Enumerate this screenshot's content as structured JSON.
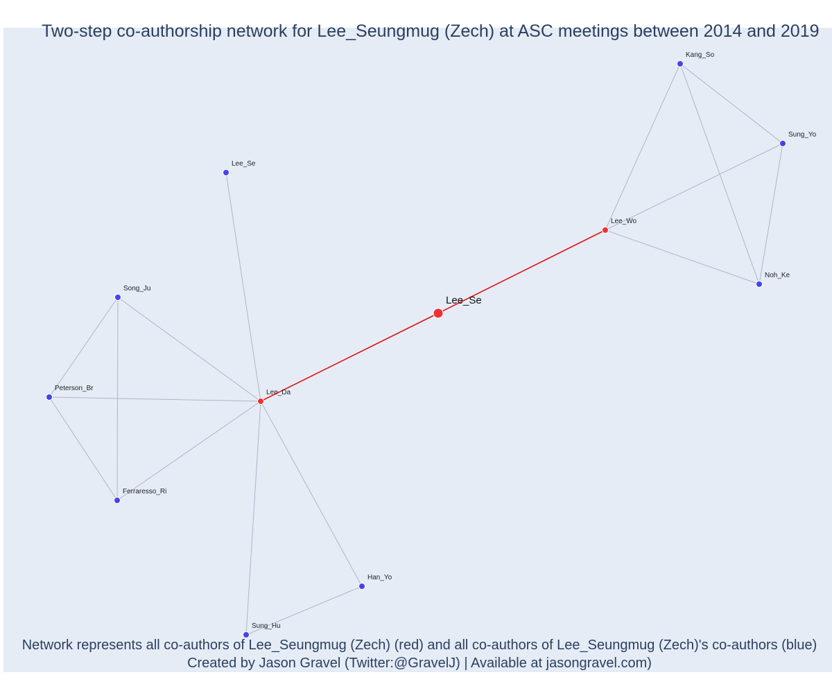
{
  "title": "Two-step co-authorship network for Lee_Seungmug (Zech) at ASC meetings between 2014 and 2019",
  "captions": {
    "line1": "Network represents all co-authors of Lee_Seungmug (Zech) (red) and all co-authors of Lee_Seungmug (Zech)'s co-authors (blue)",
    "line2": "Created by Jason Gravel (Twitter:@GravelJ) | Available at jasongravel.com)"
  },
  "colors": {
    "background": "#e5ecf6",
    "focal": "#f03030",
    "coauthor": "#f03030",
    "second_step": "#4444ee",
    "edge_focal": "#e01010",
    "edge_other": "#b0b4c8",
    "node_outline": "#ffffff"
  },
  "nodes": [
    {
      "id": "Lee_Se_focal",
      "label": "Lee_Se",
      "role": "focal"
    },
    {
      "id": "Lee_Wo",
      "label": "Lee_Wo",
      "role": "coauthor"
    },
    {
      "id": "Lee_Da",
      "label": "Lee_Da",
      "role": "coauthor"
    },
    {
      "id": "Kang_So",
      "label": "Kang_So",
      "role": "second_step"
    },
    {
      "id": "Sung_Yo",
      "label": "Sung_Yo",
      "role": "second_step"
    },
    {
      "id": "Noh_Ke",
      "label": "Noh_Ke",
      "role": "second_step"
    },
    {
      "id": "Lee_Se_2",
      "label": "Lee_Se",
      "role": "second_step"
    },
    {
      "id": "Song_Ju",
      "label": "Song_Ju",
      "role": "second_step"
    },
    {
      "id": "Peterson_Br",
      "label": "Peterson_Br",
      "role": "second_step"
    },
    {
      "id": "Ferraresso_Ri",
      "label": "Ferraresso_Ri",
      "role": "second_step"
    },
    {
      "id": "Han_Yo",
      "label": "Han_Yo",
      "role": "second_step"
    },
    {
      "id": "Sung_Hu",
      "label": "Sung_Hu",
      "role": "second_step"
    }
  ],
  "edges": [
    {
      "source": "Lee_Se_focal",
      "target": "Lee_Wo",
      "kind": "focal"
    },
    {
      "source": "Lee_Se_focal",
      "target": "Lee_Da",
      "kind": "focal"
    },
    {
      "source": "Lee_Wo",
      "target": "Kang_So",
      "kind": "other"
    },
    {
      "source": "Lee_Wo",
      "target": "Sung_Yo",
      "kind": "other"
    },
    {
      "source": "Lee_Wo",
      "target": "Noh_Ke",
      "kind": "other"
    },
    {
      "source": "Kang_So",
      "target": "Sung_Yo",
      "kind": "other"
    },
    {
      "source": "Kang_So",
      "target": "Noh_Ke",
      "kind": "other"
    },
    {
      "source": "Sung_Yo",
      "target": "Noh_Ke",
      "kind": "other"
    },
    {
      "source": "Lee_Da",
      "target": "Lee_Se_2",
      "kind": "other"
    },
    {
      "source": "Lee_Da",
      "target": "Song_Ju",
      "kind": "other"
    },
    {
      "source": "Lee_Da",
      "target": "Peterson_Br",
      "kind": "other"
    },
    {
      "source": "Lee_Da",
      "target": "Ferraresso_Ri",
      "kind": "other"
    },
    {
      "source": "Lee_Da",
      "target": "Han_Yo",
      "kind": "other"
    },
    {
      "source": "Lee_Da",
      "target": "Sung_Hu",
      "kind": "other"
    },
    {
      "source": "Song_Ju",
      "target": "Peterson_Br",
      "kind": "other"
    },
    {
      "source": "Song_Ju",
      "target": "Ferraresso_Ri",
      "kind": "other"
    },
    {
      "source": "Peterson_Br",
      "target": "Ferraresso_Ri",
      "kind": "other"
    },
    {
      "source": "Han_Yo",
      "target": "Sung_Hu",
      "kind": "other"
    }
  ]
}
